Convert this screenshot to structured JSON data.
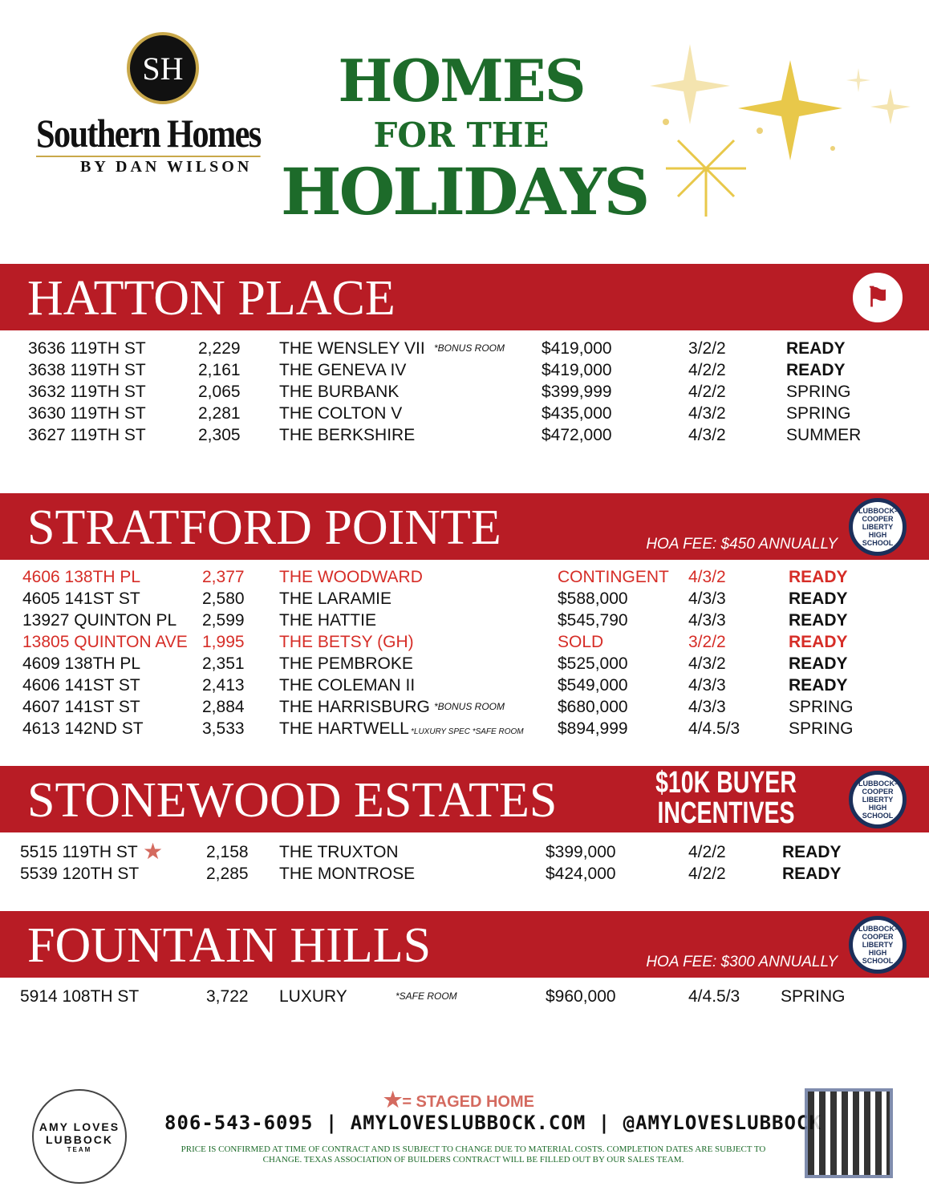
{
  "header": {
    "logo_initials": "SH",
    "brand": "Southern Homes",
    "byline": "BY DAN WILSON",
    "title_line1": "HOMES",
    "title_line2": "FOR THE",
    "title_line3": "HOLIDAYS"
  },
  "colors": {
    "band": "#b81c25",
    "title_green": "#1d6b2a",
    "highlight_red": "#d62d27",
    "sparkle_gold": "#e8c84a"
  },
  "sections": [
    {
      "name": "HATTON PLACE",
      "badge_icon": "pirate-flag-icon",
      "rows": [
        {
          "address": "3636 119TH ST",
          "sqft": "2,229",
          "plan": "THE WENSLEY VII",
          "note": "*BONUS ROOM",
          "price": "$419,000",
          "beds": "3/2/2",
          "status": "READY",
          "bold": true
        },
        {
          "address": "3638 119TH ST",
          "sqft": "2,161",
          "plan": "THE GENEVA IV",
          "price": "$419,000",
          "beds": "4/2/2",
          "status": "READY",
          "bold": true
        },
        {
          "address": "3632 119TH ST",
          "sqft": "2,065",
          "plan": "THE BURBANK",
          "price": "$399,999",
          "beds": "4/2/2",
          "status": "SPRING"
        },
        {
          "address": "3630 119TH ST",
          "sqft": "2,281",
          "plan": "THE COLTON V",
          "price": "$435,000",
          "beds": "4/3/2",
          "status": "SPRING"
        },
        {
          "address": "3627 119TH ST",
          "sqft": "2,305",
          "plan": "THE BERKSHIRE",
          "price": "$472,000",
          "beds": "4/3/2",
          "status": "SUMMER"
        }
      ]
    },
    {
      "name": "STRATFORD POINTE",
      "hoa": "HOA FEE: $450 ANNUALLY",
      "badge_text": "LUBBOCK-COOPER LIBERTY HIGH SCHOOL",
      "rows": [
        {
          "address": "4606 138TH PL",
          "sqft": "2,377",
          "plan": "THE WOODWARD",
          "price": "CONTINGENT",
          "beds": "4/3/2",
          "status": "READY",
          "bold": true,
          "red": true
        },
        {
          "address": "4605 141ST ST",
          "sqft": "2,580",
          "plan": "THE LARAMIE",
          "price": "$588,000",
          "beds": "4/3/3",
          "status": "READY",
          "bold": true
        },
        {
          "address": "13927 QUINTON PL",
          "sqft": "2,599",
          "plan": "THE HATTIE",
          "price": "$545,790",
          "beds": "4/3/3",
          "status": "READY",
          "bold": true
        },
        {
          "address": "13805 QUINTON AVE",
          "sqft": "1,995",
          "plan": "THE BETSY (GH)",
          "price": "SOLD",
          "beds": "3/2/2",
          "status": "READY",
          "bold": true,
          "red": true
        },
        {
          "address": "4609 138TH PL",
          "sqft": "2,351",
          "plan": "THE PEMBROKE",
          "price": "$525,000",
          "beds": "4/3/2",
          "status": "READY",
          "bold": true
        },
        {
          "address": "4606 141ST ST",
          "sqft": "2,413",
          "plan": "THE COLEMAN II",
          "price": "$549,000",
          "beds": "4/3/3",
          "status": "READY",
          "bold": true
        },
        {
          "address": "4607 141ST ST",
          "sqft": "2,884",
          "plan": "THE HARRISBURG",
          "note": "*BONUS ROOM",
          "price": "$680,000",
          "beds": "4/3/3",
          "status": "SPRING"
        },
        {
          "address": "4613 142ND ST",
          "sqft": "3,533",
          "plan": "THE HARTWELL",
          "note": "*LUXURY SPEC  *SAFE ROOM",
          "price": "$894,999",
          "beds": "4/4.5/3",
          "status": "SPRING"
        }
      ]
    },
    {
      "name": "STONEWOOD ESTATES",
      "incentive_line1": "$10K BUYER",
      "incentive_line2": "INCENTIVES",
      "badge_text": "LUBBOCK-COOPER LIBERTY HIGH SCHOOL",
      "rows": [
        {
          "address": "5515 119TH ST",
          "staged": true,
          "sqft": "2,158",
          "plan": "THE TRUXTON",
          "price": "$399,000",
          "beds": "4/2/2",
          "status": "READY",
          "bold": true
        },
        {
          "address": "5539 120TH ST",
          "sqft": "2,285",
          "plan": "THE MONTROSE",
          "price": "$424,000",
          "beds": "4/2/2",
          "status": "READY",
          "bold": true
        }
      ]
    },
    {
      "name": "FOUNTAIN HILLS",
      "hoa": "HOA FEE: $300 ANNUALLY",
      "badge_text": "LUBBOCK-COOPER LIBERTY HIGH SCHOOL",
      "rows": [
        {
          "address": "5914 108TH ST",
          "sqft": "3,722",
          "plan": "LUXURY",
          "note": "*SAFE ROOM",
          "price": "$960,000",
          "beds": "4/4.5/3",
          "status": "SPRING"
        }
      ]
    }
  ],
  "footer": {
    "staged_legend": "= STAGED HOME",
    "contact": "806-543-6095  |  AMYLOVESLUBBOCK.COM  |  @AMYLOVESLUBBOCK",
    "disclaimer": "PRICE IS CONFIRMED AT TIME OF CONTRACT AND IS SUBJECT TO CHANGE DUE TO MATERIAL COSTS. COMPLETION DATES ARE SUBJECT TO CHANGE. TEXAS ASSOCIATION OF BUILDERS CONTRACT WILL BE FILLED OUT BY OUR SALES TEAM.",
    "team_logo_line1": "AMY LOVES",
    "team_logo_line2": "LUBBOCK",
    "team_logo_line3": "TEAM",
    "qr_icon": "qr-code-icon"
  }
}
